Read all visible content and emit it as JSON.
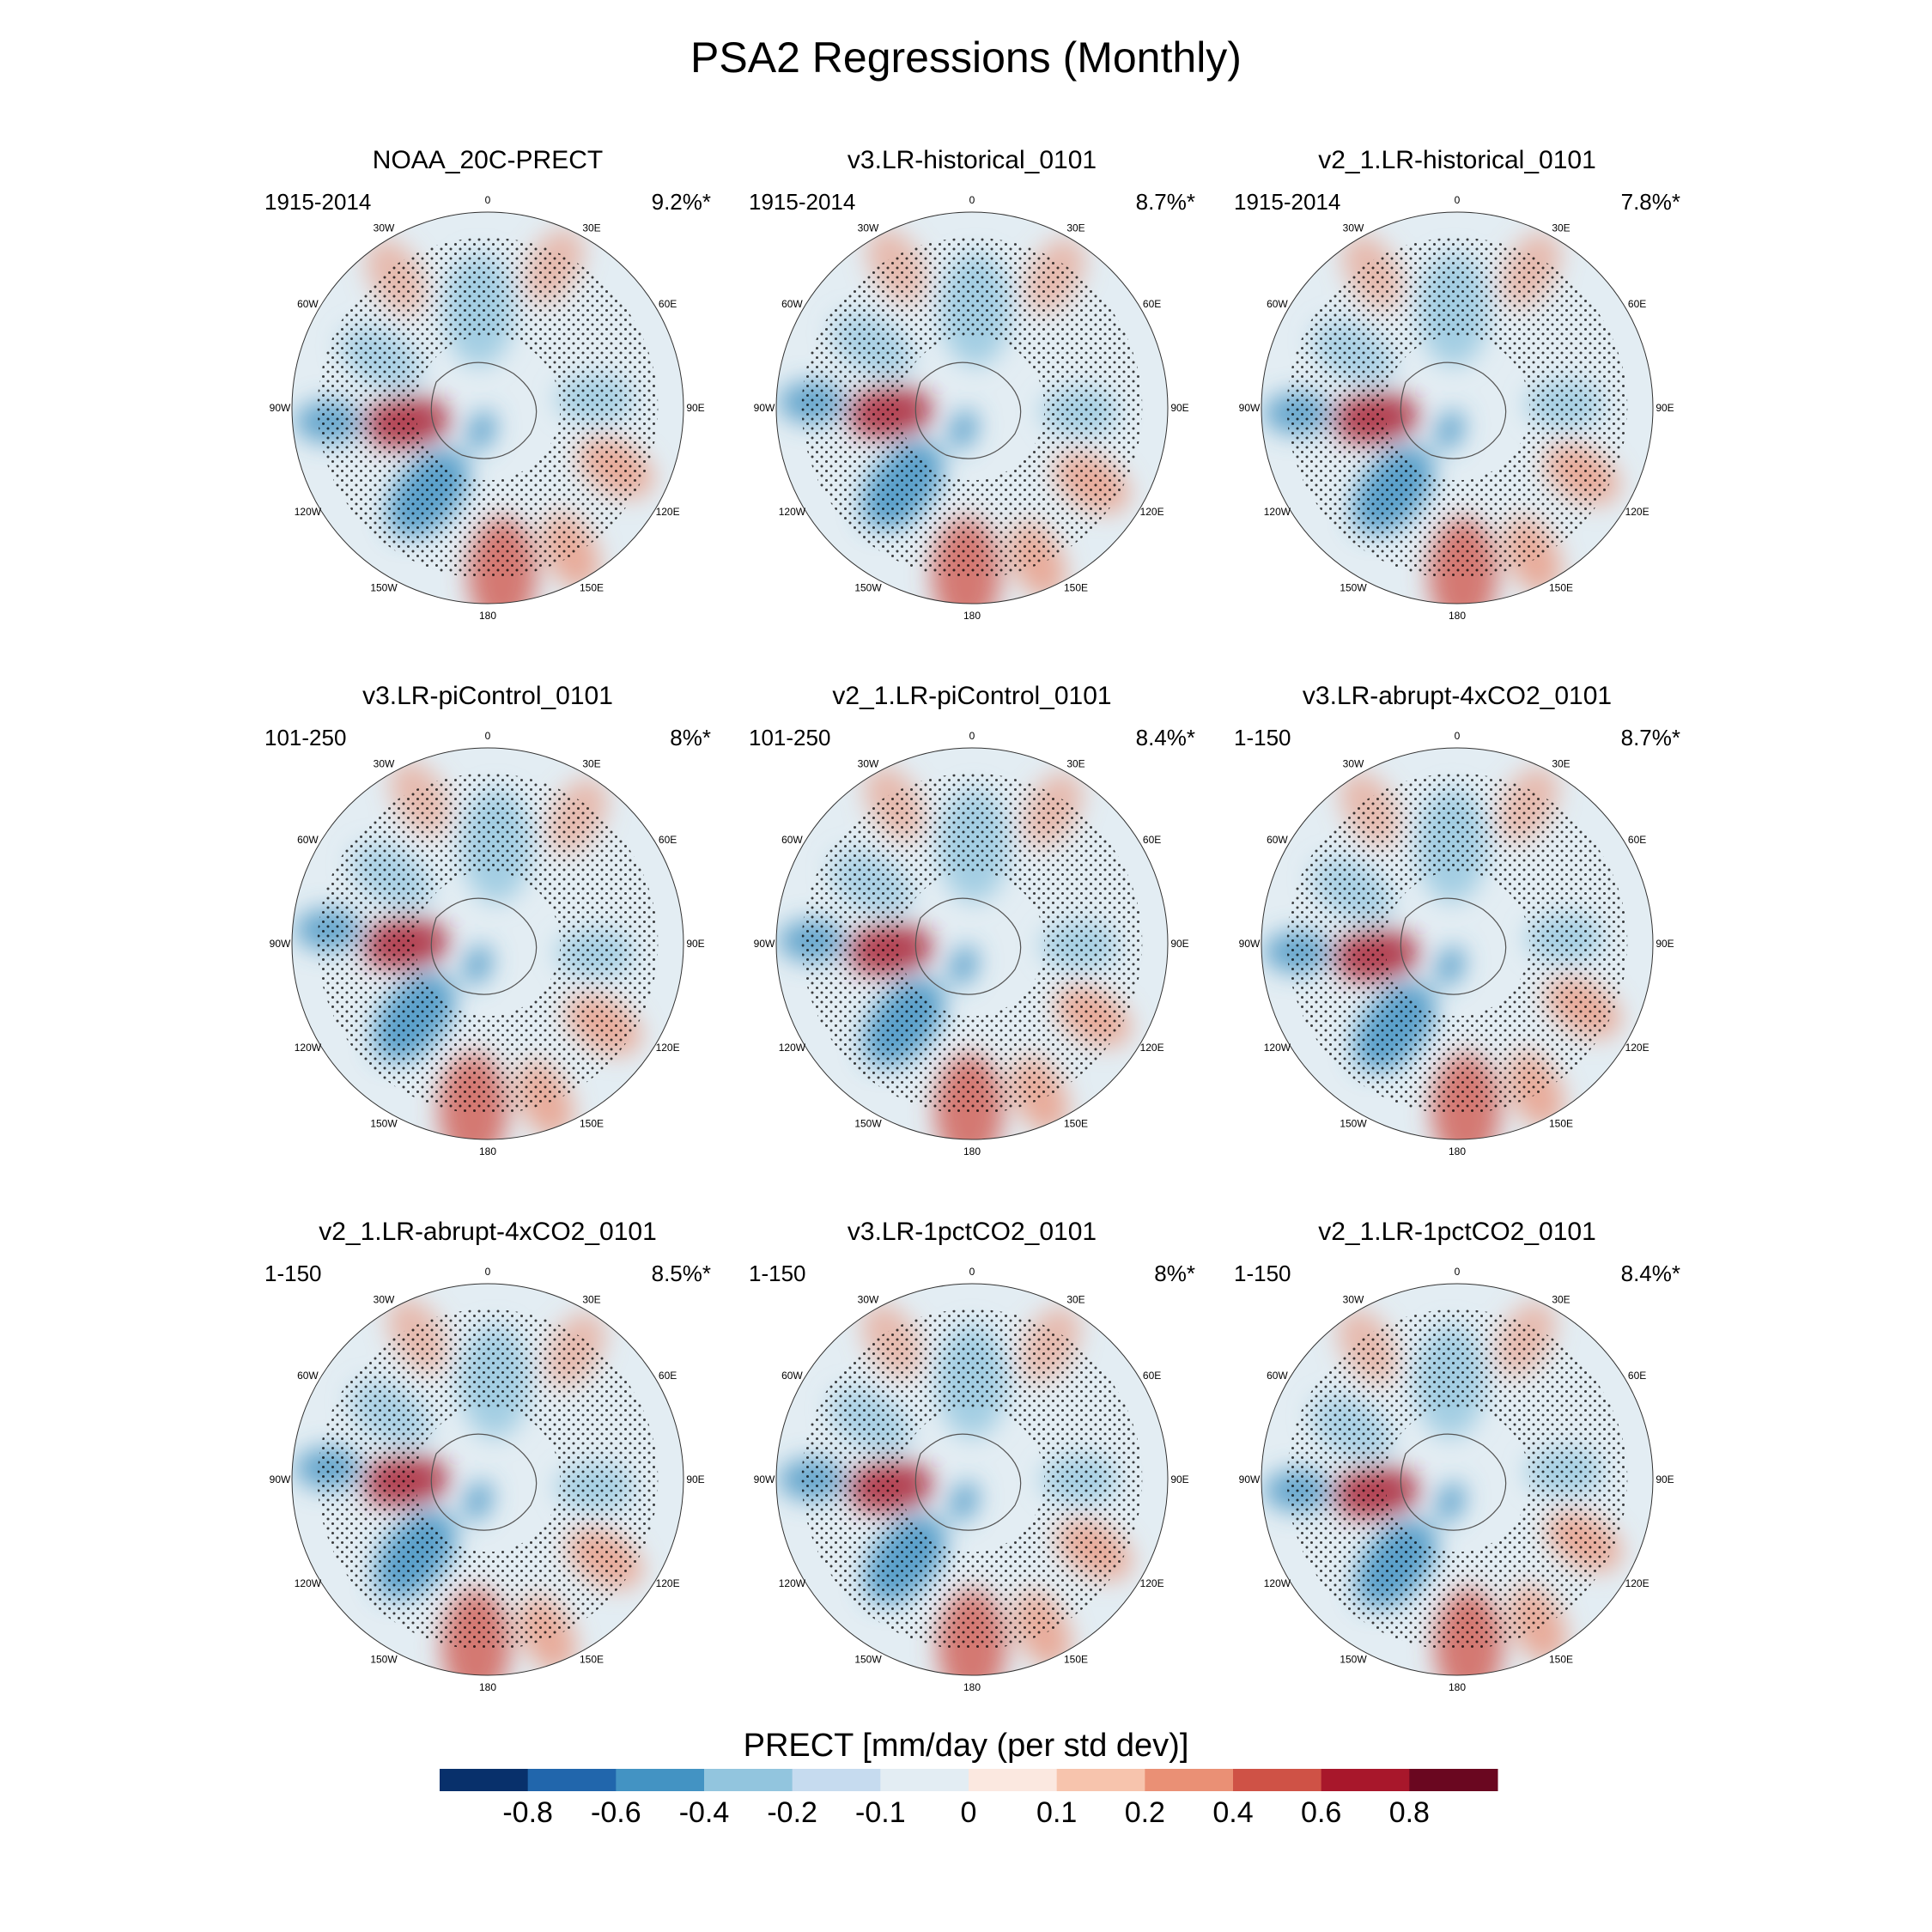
{
  "title": "PSA2 Regressions (Monthly)",
  "panels": [
    {
      "name": "NOAA_20C-PRECT",
      "period": "1915-2014",
      "pct": "9.2%*"
    },
    {
      "name": "v3.LR-historical_0101",
      "period": "1915-2014",
      "pct": "8.7%*"
    },
    {
      "name": "v2_1.LR-historical_0101",
      "period": "1915-2014",
      "pct": "7.8%*"
    },
    {
      "name": "v3.LR-piControl_0101",
      "period": "101-250",
      "pct": "8%*"
    },
    {
      "name": "v2_1.LR-piControl_0101",
      "period": "101-250",
      "pct": "8.4%*"
    },
    {
      "name": "v3.LR-abrupt-4xCO2_0101",
      "period": "1-150",
      "pct": "8.7%*"
    },
    {
      "name": "v2_1.LR-abrupt-4xCO2_0101",
      "period": "1-150",
      "pct": "8.5%*"
    },
    {
      "name": "v3.LR-1pctCO2_0101",
      "period": "1-150",
      "pct": "8%*"
    },
    {
      "name": "v2_1.LR-1pctCO2_0101",
      "period": "1-150",
      "pct": "8.4%*"
    }
  ],
  "lon_labels": [
    "0",
    "30E",
    "60E",
    "90E",
    "120E",
    "150E",
    "180",
    "150W",
    "120W",
    "90W",
    "60W",
    "30W"
  ],
  "colorbar": {
    "title": "PRECT [mm/day (per std dev)]",
    "labels": [
      "-0.8",
      "-0.6",
      "-0.4",
      "-0.2",
      "-0.1",
      "0",
      "0.1",
      "0.2",
      "0.4",
      "0.6",
      "0.8"
    ],
    "colors": [
      "#08306b",
      "#2166ac",
      "#4393c3",
      "#92c5de",
      "#c6dbef",
      "#e3edf3",
      "#fbe8e0",
      "#f7c4ad",
      "#ea9075",
      "#cf5246",
      "#a8172b",
      "#6a0720"
    ]
  },
  "colors": {
    "land_outline": "#555555",
    "stipple": "#000000",
    "map_border": "#333333"
  }
}
